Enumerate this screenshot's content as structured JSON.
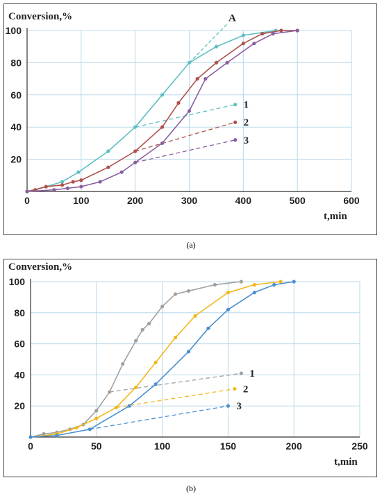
{
  "chart_data": [
    {
      "type": "line",
      "ylabel": "Conversion,%",
      "xlabel": "t,min",
      "xlim": [
        0,
        600
      ],
      "ylim": [
        0,
        100
      ],
      "xticks": [
        0,
        100,
        200,
        300,
        400,
        500,
        600
      ],
      "yticks": [
        20,
        40,
        60,
        80,
        100
      ],
      "xtick_labels": [
        "0",
        "100",
        "200",
        "300",
        "400",
        "500",
        "600"
      ],
      "ytick_labels": [
        "20",
        "40",
        "60",
        "80",
        "100"
      ],
      "grid": true,
      "series": [
        {
          "color": "#5fbfc2",
          "x": [
            0,
            35,
            65,
            95,
            150,
            200,
            250,
            300,
            350,
            400,
            460,
            500
          ],
          "y": [
            0,
            3,
            6,
            12,
            25,
            40,
            60,
            80,
            90,
            97,
            100,
            100
          ],
          "tangent": {
            "x": [
              200,
              385
            ],
            "y": [
              40,
              54
            ]
          },
          "label": "1"
        },
        {
          "color": "#b0504a",
          "x": [
            0,
            15,
            35,
            65,
            85,
            100,
            150,
            200,
            250,
            280,
            315,
            350,
            400,
            435,
            470,
            500
          ],
          "y": [
            0,
            1,
            3,
            4,
            6,
            7,
            15,
            25,
            40,
            55,
            70,
            80,
            92,
            98,
            100,
            100
          ],
          "tangent": {
            "x": [
              200,
              385
            ],
            "y": [
              25,
              43
            ]
          },
          "label": "2"
        },
        {
          "color": "#8a5ea0",
          "x": [
            0,
            50,
            75,
            100,
            135,
            175,
            200,
            250,
            300,
            330,
            370,
            420,
            455,
            500
          ],
          "y": [
            0,
            1,
            2,
            3,
            6,
            12,
            18,
            30,
            50,
            70,
            80,
            92,
            98,
            100
          ],
          "tangent": {
            "x": [
              200,
              385
            ],
            "y": [
              18,
              32
            ]
          },
          "label": "3"
        }
      ],
      "annotation": {
        "text": "A",
        "line": {
          "x": [
            300,
            370
          ],
          "y": [
            80,
            104
          ]
        }
      }
    },
    {
      "type": "line",
      "ylabel": "Conversion,%",
      "xlabel": "t,min",
      "xlim": [
        0,
        250
      ],
      "ylim": [
        0,
        100
      ],
      "xticks": [
        0,
        50,
        100,
        150,
        200,
        250
      ],
      "yticks": [
        20,
        40,
        60,
        80,
        100
      ],
      "xtick_labels": [
        "0",
        "50",
        "100",
        "150",
        "200",
        "250"
      ],
      "ytick_labels": [
        "20",
        "40",
        "60",
        "80",
        "100"
      ],
      "grid": true,
      "series": [
        {
          "color": "#a0a0a0",
          "x": [
            0,
            10,
            20,
            30,
            40,
            50,
            60,
            70,
            80,
            85,
            90,
            100,
            110,
            120,
            140,
            160
          ],
          "y": [
            0,
            2,
            3,
            5,
            8,
            17,
            29,
            47,
            62,
            69,
            73,
            84,
            92,
            94,
            98,
            100
          ],
          "tangent": {
            "x": [
              60,
              160
            ],
            "y": [
              29,
              41
            ]
          },
          "label": "1"
        },
        {
          "color": "#f2b81a",
          "x": [
            0,
            20,
            35,
            50,
            65,
            80,
            95,
            110,
            125,
            150,
            170,
            190
          ],
          "y": [
            0,
            2,
            6,
            12,
            19,
            32,
            48,
            64,
            78,
            93,
            98,
            100
          ],
          "tangent": {
            "x": [
              65,
              155
            ],
            "y": [
              19,
              31
            ]
          },
          "label": "2"
        },
        {
          "color": "#4a8fd0",
          "x": [
            0,
            20,
            45,
            75,
            95,
            120,
            135,
            150,
            170,
            185,
            200
          ],
          "y": [
            0,
            1,
            5,
            20,
            34,
            55,
            70,
            82,
            93,
            98,
            100
          ],
          "tangent": {
            "x": [
              45,
              150
            ],
            "y": [
              5,
              20
            ]
          },
          "label": "3"
        }
      ]
    }
  ],
  "captions": [
    "(a)",
    "(b)"
  ]
}
